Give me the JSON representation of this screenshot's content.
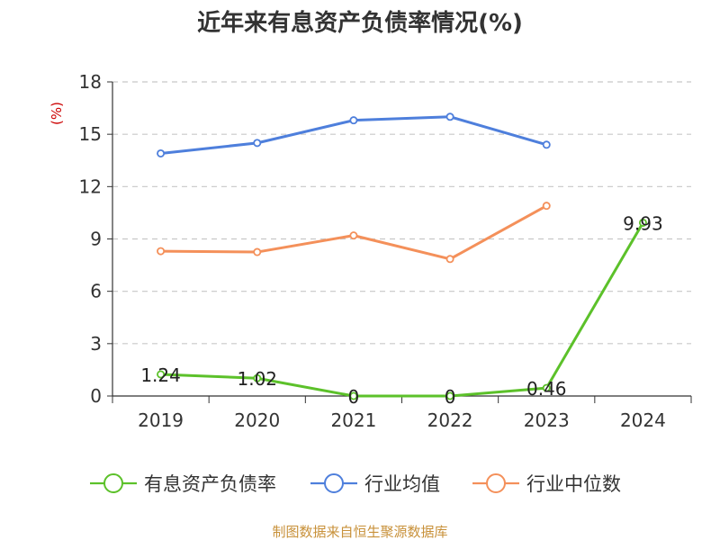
{
  "chart_data": {
    "type": "line",
    "title": "近年来有息资产负债率情况(%)",
    "ylabel": "(%)",
    "ylim": [
      0,
      18
    ],
    "yticks": [
      0,
      3,
      6,
      9,
      12,
      15,
      18
    ],
    "grid": true,
    "categories": [
      "2019",
      "2020",
      "2021",
      "2022",
      "2023",
      "2024"
    ],
    "series": [
      {
        "name": "有息资产负债率",
        "color": "#5cc12a",
        "values": [
          1.24,
          1.02,
          0,
          0,
          0.46,
          9.93
        ],
        "labels": [
          "1.24",
          "1.02",
          "0",
          "0",
          "0.46",
          "9.93"
        ]
      },
      {
        "name": "行业均值",
        "color": "#4e7fdc",
        "values": [
          13.9,
          14.5,
          15.8,
          16.0,
          14.4,
          null
        ]
      },
      {
        "name": "行业中位数",
        "color": "#f4905a",
        "values": [
          8.3,
          8.25,
          9.2,
          7.85,
          10.9,
          null
        ]
      }
    ],
    "legend_position": "bottom"
  },
  "source": "制图数据来自恒生聚源数据库"
}
